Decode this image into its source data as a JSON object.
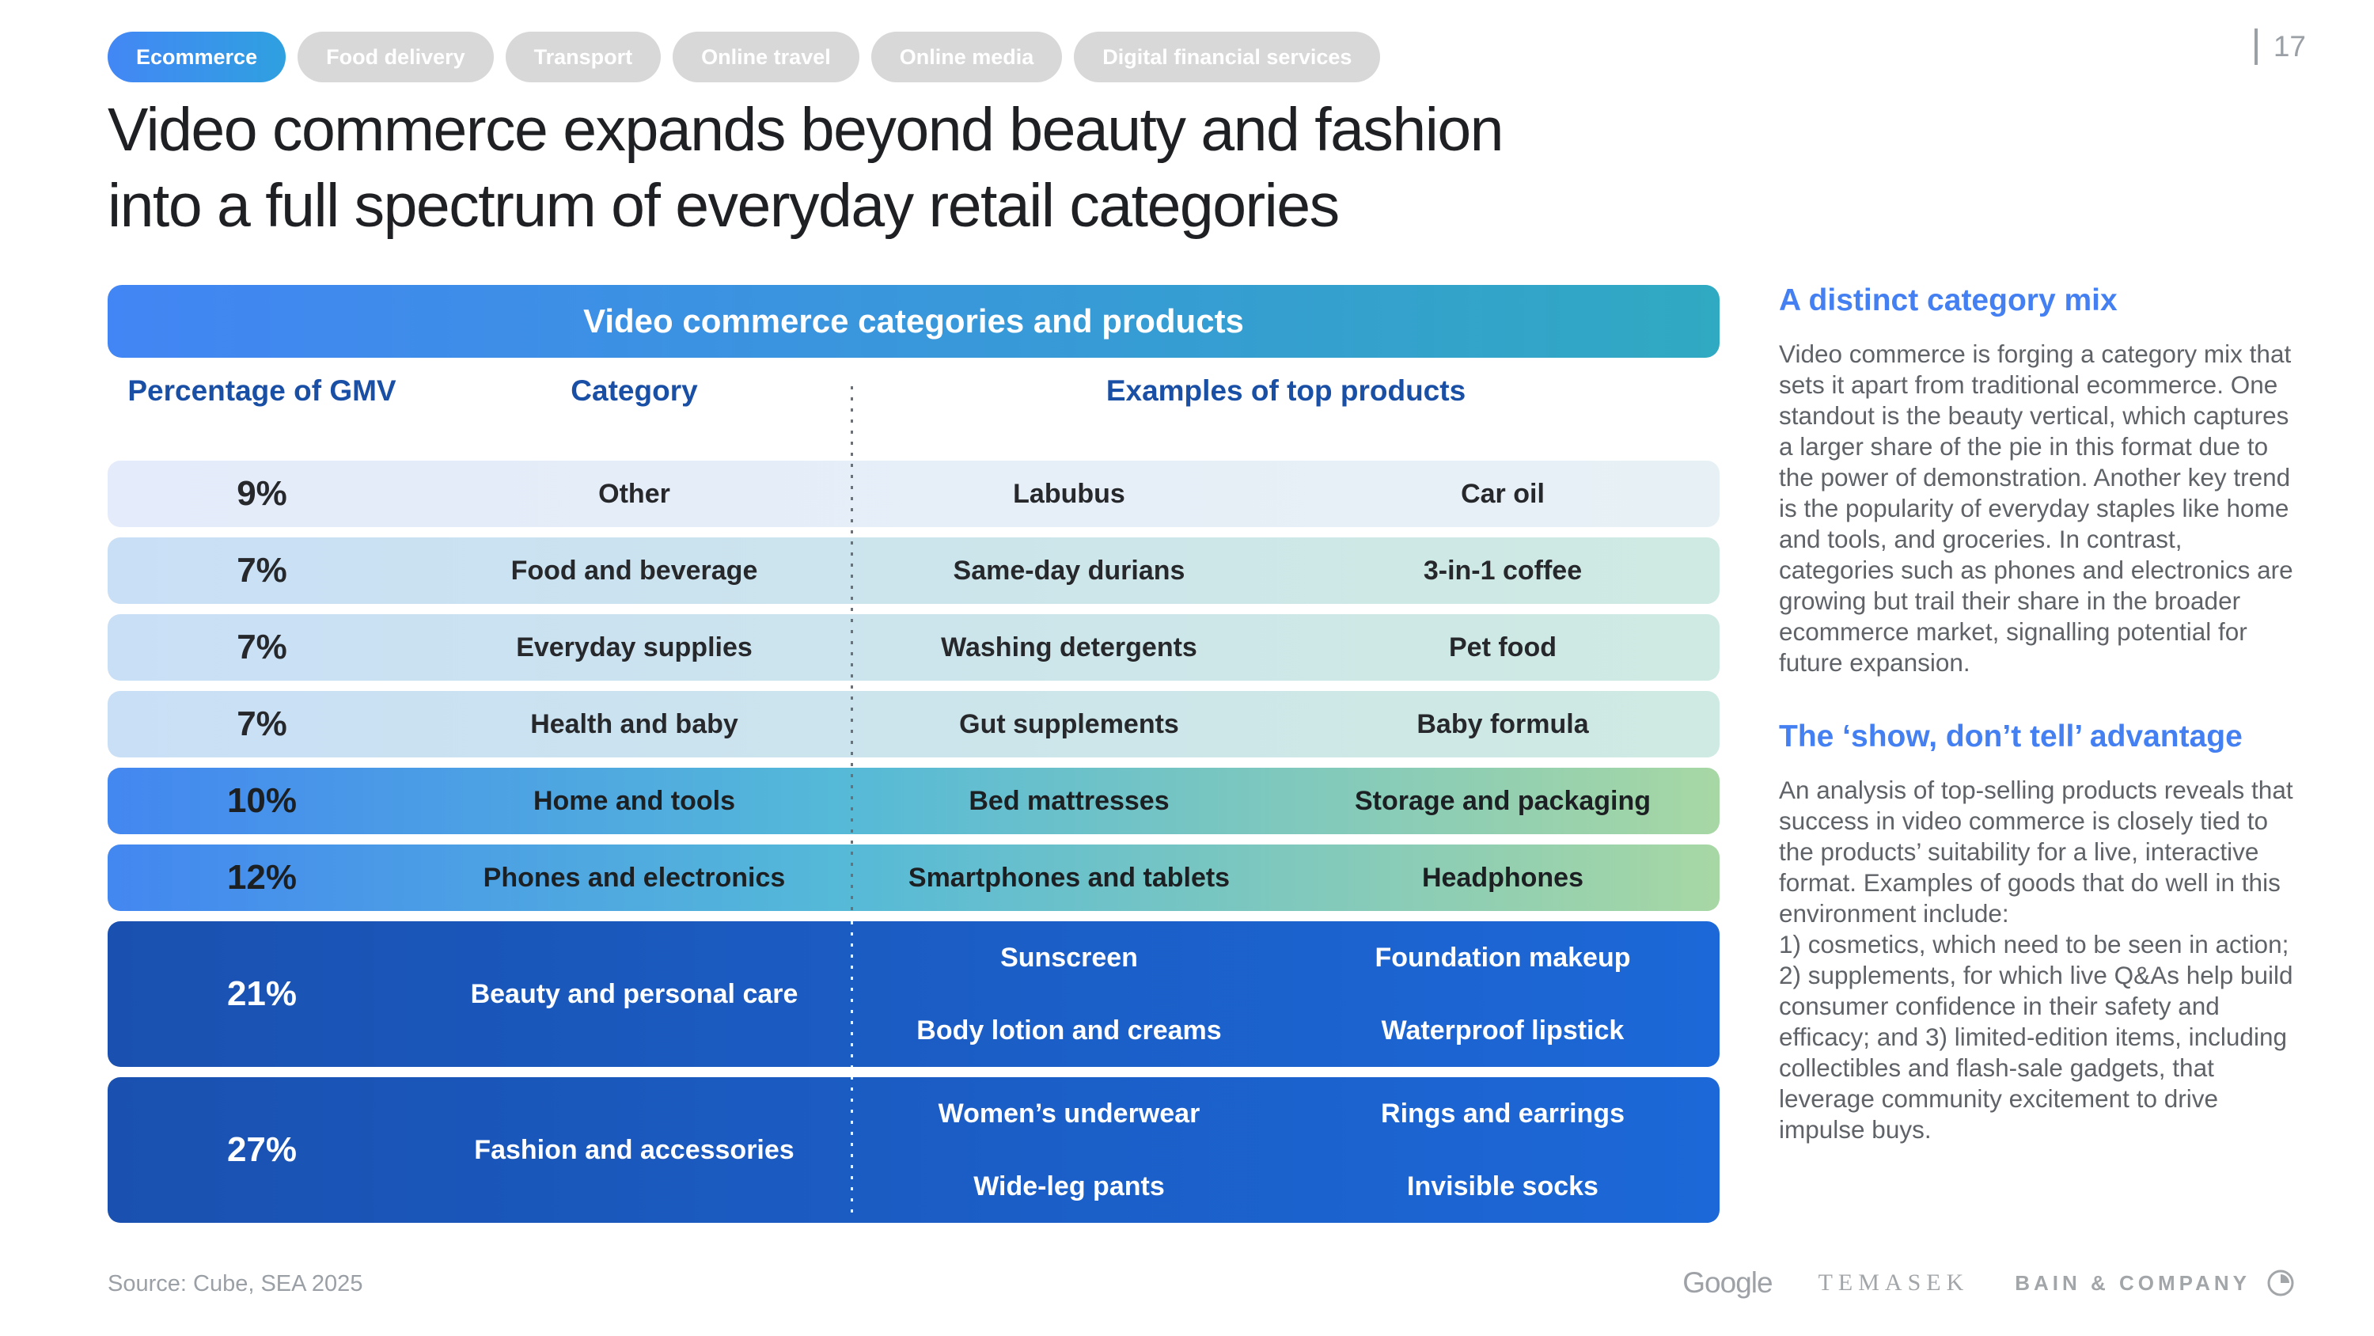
{
  "page": {
    "number": "17"
  },
  "tabs": {
    "items": [
      {
        "label": "Ecommerce",
        "active": true
      },
      {
        "label": "Food delivery",
        "active": false
      },
      {
        "label": "Transport",
        "active": false
      },
      {
        "label": "Online travel",
        "active": false
      },
      {
        "label": "Online media",
        "active": false
      },
      {
        "label": "Digital financial services",
        "active": false
      }
    ]
  },
  "title": {
    "line1": "Video commerce expands beyond beauty and fashion",
    "line2": "into a full spectrum of everyday retail categories"
  },
  "table": {
    "header": "Video commerce categories and products",
    "columns": [
      "Percentage of GMV",
      "Category",
      "Examples of top products"
    ],
    "rows": [
      {
        "pct": "9%",
        "category": "Other",
        "products": [
          "Labubus",
          "Car oil"
        ],
        "tone": "lightest"
      },
      {
        "pct": "7%",
        "category": "Food and beverage",
        "products": [
          "Same-day durians",
          "3-in-1 coffee"
        ],
        "tone": "light"
      },
      {
        "pct": "7%",
        "category": "Everyday supplies",
        "products": [
          "Washing detergents",
          "Pet food"
        ],
        "tone": "light"
      },
      {
        "pct": "7%",
        "category": "Health and baby",
        "products": [
          "Gut supplements",
          "Baby formula"
        ],
        "tone": "light"
      },
      {
        "pct": "10%",
        "category": "Home and tools",
        "products": [
          "Bed mattresses",
          "Storage and packaging"
        ],
        "tone": "medium"
      },
      {
        "pct": "12%",
        "category": "Phones and electronics",
        "products": [
          "Smartphones and tablets",
          "Headphones"
        ],
        "tone": "medium"
      },
      {
        "pct": "21%",
        "category": "Beauty and personal care",
        "products": [
          "Sunscreen",
          "Foundation makeup",
          "Body lotion and creams",
          "Waterproof lipstick"
        ],
        "tone": "dark"
      },
      {
        "pct": "27%",
        "category": "Fashion and accessories",
        "products": [
          "Women’s underwear",
          "Rings and earrings",
          "Wide-leg pants",
          "Invisible socks"
        ],
        "tone": "dark"
      }
    ]
  },
  "chart_data": {
    "type": "table",
    "title": "Video commerce categories and products",
    "categories": [
      "Other",
      "Food and beverage",
      "Everyday supplies",
      "Health and baby",
      "Home and tools",
      "Phones and electronics",
      "Beauty and personal care",
      "Fashion and accessories"
    ],
    "values_pct_of_gmv": [
      9,
      7,
      7,
      7,
      10,
      12,
      21,
      27
    ]
  },
  "sidebar": {
    "sections": [
      {
        "heading": "A distinct category mix",
        "body": "Video commerce is forging a category mix that sets it apart from traditional ecommerce. One standout is the beauty vertical, which captures a larger share of the pie in this format due to the power of demonstration. Another key trend is the popularity of everyday staples like home and tools, and groceries. In contrast, categories such as phones and electronics are growing but trail their share in the broader ecommerce market, signalling potential for future expansion."
      },
      {
        "heading": "The ‘show, don’t tell’ advantage",
        "body": "An analysis of top-selling products reveals that success in video commerce is closely tied to the products’ suitability for a live, interactive format. Examples of goods that do well in this environment include:\n1) cosmetics, which need to be seen in action; 2) supplements, for which live Q&As help build consumer confidence in their safety and efficacy; and 3) limited-edition items, including collectibles and flash-sale gadgets, that leverage community excitement to drive impulse buys."
      }
    ]
  },
  "footer": {
    "source": "Source: Cube, SEA 2025",
    "logos": [
      "Google",
      "TEMASEK",
      "BAIN & COMPANY"
    ]
  },
  "colors": {
    "band_blue": "#4285f4",
    "band_teal": "#30a9c2",
    "tab_blue": "#4387f5",
    "colhead_blue": "#1a4fa6",
    "heading_blue": "#4480f2",
    "dark_row_left": "#1a51b0",
    "dark_row_right": "#1c68d8",
    "body_gray": "#5f6368",
    "muted_gray": "#9aa0a6"
  }
}
